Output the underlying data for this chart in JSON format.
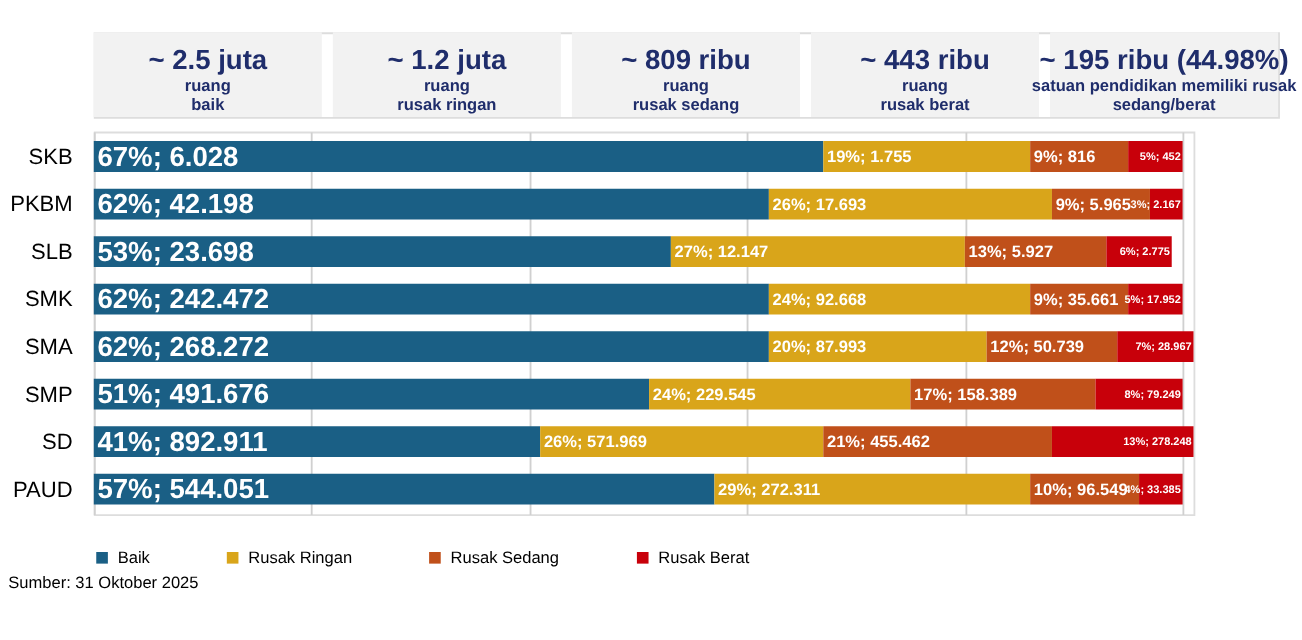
{
  "chart_data": {
    "type": "bar",
    "stacked": true,
    "orientation": "horizontal",
    "categories": [
      "SKB",
      "PKBM",
      "SLB",
      "SMK",
      "SMA",
      "SMP",
      "SD",
      "PAUD"
    ],
    "series": [
      {
        "name": "Baik",
        "color": "#1a5f85",
        "values": [
          67,
          62,
          53,
          62,
          62,
          51,
          41,
          57
        ],
        "value_labels": [
          "67%; 6.028",
          "62%; 42.198",
          "53%; 23.698",
          "62%; 242.472",
          "62%; 268.272",
          "51%; 491.676",
          "41%; 892.911",
          "57%; 544.051"
        ]
      },
      {
        "name": "Rusak Ringan",
        "color": "#d9a51a",
        "values": [
          19,
          26,
          27,
          24,
          20,
          24,
          26,
          29
        ],
        "value_labels": [
          "19%; 1.755",
          "26%; 17.693",
          "27%; 12.147",
          "24%; 92.668",
          "20%; 87.993",
          "24%; 229.545",
          "26%; 571.969",
          "29%; 272.311"
        ]
      },
      {
        "name": "Rusak Sedang",
        "color": "#c0501a",
        "values": [
          9,
          9,
          13,
          9,
          12,
          17,
          21,
          10
        ],
        "value_labels": [
          "9%; 816",
          "9%; 5.965",
          "13%; 5.927",
          "9%; 35.661",
          "12%; 50.739",
          "17%; 158.389",
          "21%; 455.462",
          "10%; 96.549"
        ]
      },
      {
        "name": "Rusak Berat",
        "color": "#c8000a",
        "values": [
          5,
          3,
          6,
          5,
          7,
          8,
          13,
          4
        ],
        "value_labels": [
          "5%; 452",
          "3%; 2.167",
          "6%; 2.775",
          "5%; 17.952",
          "7%; 28.967",
          "8%; 79.249",
          "13%; 278.248",
          "4%; 33.385"
        ]
      }
    ],
    "xlim": [
      0,
      101
    ],
    "xticks": [
      {
        "value": 0,
        "label": null
      },
      {
        "value": 20,
        "label": null
      },
      {
        "value": 40,
        "label": null
      },
      {
        "value": 60,
        "label": null
      },
      {
        "value": 80,
        "label": null
      },
      {
        "value": 100,
        "label": null
      }
    ],
    "grid": "x",
    "legend": "bottom",
    "tick_labels": "y",
    "annotations": [
      "~ 2.5 juta\nruang\nbaik",
      "~ 1.2 juta\nruang\nrusak ringan",
      "~ 809 ribu\nruang\nrusak sedang",
      "~ 443 ribu\nruang\nrusak berat",
      "~ 195 ribu (44.98%)\nsatuan pendidikan memiliki rusak\nsedang/berat",
      "Sumber: 31 Oktober 2025"
    ]
  }
}
